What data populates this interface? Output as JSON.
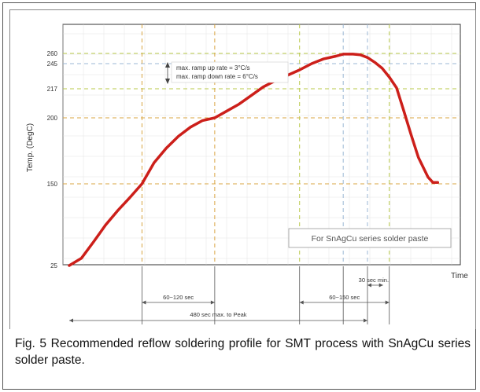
{
  "chart_data": {
    "type": "line",
    "title": "",
    "xlabel": "Time",
    "ylabel": "Temp. (DegC)",
    "y_ticks": [
      25,
      150,
      200,
      217,
      245,
      260
    ],
    "x_guide_lines": [
      0,
      30,
      60,
      95,
      113,
      123,
      132
    ],
    "y_guide_lines": [
      150,
      200,
      217,
      245,
      260
    ],
    "xlim": [
      0,
      160
    ],
    "series": [
      {
        "name": "",
        "color": "#cc1f1a",
        "x": [
          0,
          5,
          10,
          15,
          20,
          25,
          30,
          35,
          40,
          45,
          50,
          55,
          60,
          65,
          70,
          75,
          80,
          85,
          90,
          95,
          100,
          105,
          110,
          113,
          117,
          120,
          123,
          126,
          129,
          132,
          135,
          138,
          141,
          144,
          148,
          150,
          152
        ],
        "y": [
          25,
          36,
          61,
          87,
          109,
          129,
          150,
          166,
          177,
          186,
          193,
          198,
          200,
          204,
          208,
          213,
          219,
          226,
          232,
          238,
          245,
          252,
          256,
          259,
          259,
          258,
          254,
          247,
          240,
          230,
          218,
          204,
          187,
          170,
          155,
          151,
          151
        ]
      }
    ],
    "annotations": {
      "ramp_up": "max. ramp up rate = 3°C/s",
      "ramp_down": "max. ramp down rate = 6°C/s",
      "legend_box": "For SnAgCu series solder paste",
      "dim_30": "30 sec min.",
      "dim_60_120": "60~120 sec",
      "dim_60_150": "60~150 sec",
      "dim_480": "480 sec max. to Peak"
    },
    "colors": {
      "guide_orange": "#d9a441",
      "guide_green": "#b8c94a",
      "guide_blue": "#9bb7d4",
      "grid": "#dddddd"
    }
  },
  "caption": "Fig. 5 Recommended reflow soldering profile for SMT process with SnAgCu series solder paste."
}
